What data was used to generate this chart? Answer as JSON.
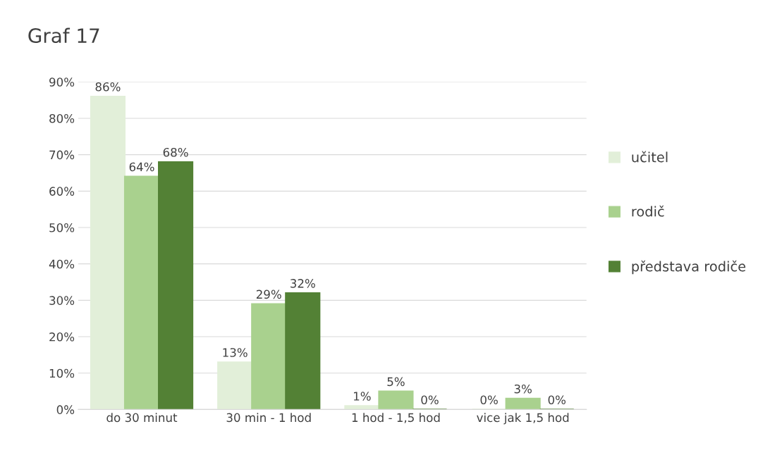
{
  "chart_data": {
    "type": "bar",
    "title": "Graf 17",
    "categories": [
      "do 30 minut",
      "30 min - 1 hod",
      "1 hod - 1,5 hod",
      "vice jak 1,5 hod"
    ],
    "series": [
      {
        "name": "učitel",
        "color": "#e2efd9",
        "values": [
          86,
          13,
          1,
          0
        ],
        "value_labels": [
          "86%",
          "13%",
          "1%",
          "0%"
        ]
      },
      {
        "name": "rodič",
        "color": "#a9d18e",
        "values": [
          64,
          29,
          5,
          3
        ],
        "value_labels": [
          "64%",
          "29%",
          "5%",
          "3%"
        ]
      },
      {
        "name": "představa rodiče",
        "color": "#538135",
        "values": [
          68,
          32,
          0,
          0
        ],
        "value_labels": [
          "68%",
          "32%",
          "0%",
          "0%"
        ]
      }
    ],
    "ylim": [
      0,
      90
    ],
    "yticks": [
      {
        "value": 0,
        "label": "0%"
      },
      {
        "value": 10,
        "label": "10%"
      },
      {
        "value": 20,
        "label": "20%"
      },
      {
        "value": 30,
        "label": "30%"
      },
      {
        "value": 40,
        "label": "40%"
      },
      {
        "value": 50,
        "label": "50%"
      },
      {
        "value": 60,
        "label": "60%"
      },
      {
        "value": 70,
        "label": "70%"
      },
      {
        "value": 80,
        "label": "80%"
      },
      {
        "value": 90,
        "label": "90%"
      }
    ],
    "grid": "y",
    "legend": "right"
  }
}
